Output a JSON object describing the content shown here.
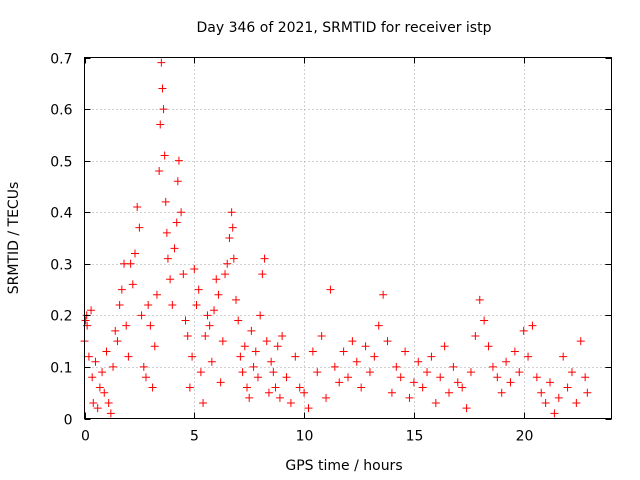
{
  "chart_data": {
    "type": "scatter",
    "title": "Day 346 of 2021, SRMTID for receiver istp",
    "xlabel": "GPS time / hours",
    "ylabel": "SRMTID / TECUs",
    "xlim": [
      0,
      24
    ],
    "ylim": [
      0,
      0.7
    ],
    "x_ticks": [
      0,
      5,
      10,
      15,
      20
    ],
    "y_ticks": [
      0,
      0.1,
      0.2,
      0.3,
      0.4,
      0.5,
      0.6,
      0.7
    ],
    "x_tick_labels": [
      "0",
      "5",
      "10",
      "15",
      "20"
    ],
    "y_tick_labels": [
      "0",
      "0.1",
      "0.2",
      "0.3",
      "0.4",
      "0.5",
      "0.6",
      "0.7"
    ],
    "grid": true,
    "marker": "+",
    "color": "#ff0000",
    "series": [
      {
        "name": "SRMTID",
        "points": [
          [
            0.0,
            0.15
          ],
          [
            0.05,
            0.19
          ],
          [
            0.1,
            0.2
          ],
          [
            0.12,
            0.18
          ],
          [
            0.2,
            0.12
          ],
          [
            0.3,
            0.21
          ],
          [
            0.35,
            0.08
          ],
          [
            0.4,
            0.03
          ],
          [
            0.5,
            0.11
          ],
          [
            0.6,
            0.02
          ],
          [
            0.7,
            0.06
          ],
          [
            0.8,
            0.09
          ],
          [
            0.9,
            0.05
          ],
          [
            1.0,
            0.13
          ],
          [
            1.1,
            0.03
          ],
          [
            1.2,
            0.01
          ],
          [
            1.3,
            0.1
          ],
          [
            1.4,
            0.17
          ],
          [
            1.5,
            0.15
          ],
          [
            1.6,
            0.22
          ],
          [
            1.7,
            0.25
          ],
          [
            1.8,
            0.3
          ],
          [
            1.9,
            0.18
          ],
          [
            2.0,
            0.12
          ],
          [
            2.1,
            0.3
          ],
          [
            2.2,
            0.26
          ],
          [
            2.3,
            0.32
          ],
          [
            2.4,
            0.41
          ],
          [
            2.5,
            0.37
          ],
          [
            2.6,
            0.2
          ],
          [
            2.7,
            0.1
          ],
          [
            2.8,
            0.08
          ],
          [
            2.9,
            0.22
          ],
          [
            3.0,
            0.18
          ],
          [
            3.1,
            0.06
          ],
          [
            3.2,
            0.14
          ],
          [
            3.3,
            0.24
          ],
          [
            3.4,
            0.48
          ],
          [
            3.45,
            0.57
          ],
          [
            3.5,
            0.69
          ],
          [
            3.55,
            0.64
          ],
          [
            3.6,
            0.6
          ],
          [
            3.65,
            0.51
          ],
          [
            3.7,
            0.42
          ],
          [
            3.75,
            0.36
          ],
          [
            3.8,
            0.31
          ],
          [
            3.9,
            0.27
          ],
          [
            4.0,
            0.22
          ],
          [
            4.1,
            0.33
          ],
          [
            4.2,
            0.38
          ],
          [
            4.25,
            0.46
          ],
          [
            4.3,
            0.5
          ],
          [
            4.4,
            0.4
          ],
          [
            4.5,
            0.28
          ],
          [
            4.6,
            0.19
          ],
          [
            4.7,
            0.16
          ],
          [
            4.8,
            0.06
          ],
          [
            4.9,
            0.12
          ],
          [
            5.0,
            0.29
          ],
          [
            5.1,
            0.22
          ],
          [
            5.2,
            0.25
          ],
          [
            5.3,
            0.09
          ],
          [
            5.4,
            0.03
          ],
          [
            5.5,
            0.16
          ],
          [
            5.6,
            0.2
          ],
          [
            5.7,
            0.18
          ],
          [
            5.8,
            0.11
          ],
          [
            5.9,
            0.21
          ],
          [
            6.0,
            0.27
          ],
          [
            6.1,
            0.24
          ],
          [
            6.2,
            0.07
          ],
          [
            6.3,
            0.15
          ],
          [
            6.4,
            0.28
          ],
          [
            6.5,
            0.3
          ],
          [
            6.6,
            0.35
          ],
          [
            6.7,
            0.4
          ],
          [
            6.75,
            0.37
          ],
          [
            6.8,
            0.31
          ],
          [
            6.9,
            0.23
          ],
          [
            7.0,
            0.19
          ],
          [
            7.1,
            0.12
          ],
          [
            7.2,
            0.09
          ],
          [
            7.3,
            0.14
          ],
          [
            7.4,
            0.06
          ],
          [
            7.5,
            0.04
          ],
          [
            7.6,
            0.17
          ],
          [
            7.7,
            0.1
          ],
          [
            7.8,
            0.13
          ],
          [
            7.9,
            0.08
          ],
          [
            8.0,
            0.2
          ],
          [
            8.1,
            0.28
          ],
          [
            8.2,
            0.31
          ],
          [
            8.3,
            0.15
          ],
          [
            8.4,
            0.05
          ],
          [
            8.5,
            0.11
          ],
          [
            8.6,
            0.09
          ],
          [
            8.7,
            0.06
          ],
          [
            8.8,
            0.14
          ],
          [
            8.9,
            0.04
          ],
          [
            9.0,
            0.16
          ],
          [
            9.2,
            0.08
          ],
          [
            9.4,
            0.03
          ],
          [
            9.6,
            0.12
          ],
          [
            9.8,
            0.06
          ],
          [
            10.0,
            0.05
          ],
          [
            10.2,
            0.02
          ],
          [
            10.4,
            0.13
          ],
          [
            10.6,
            0.09
          ],
          [
            10.8,
            0.16
          ],
          [
            11.0,
            0.04
          ],
          [
            11.2,
            0.25
          ],
          [
            11.4,
            0.1
          ],
          [
            11.6,
            0.07
          ],
          [
            11.8,
            0.13
          ],
          [
            12.0,
            0.08
          ],
          [
            12.2,
            0.15
          ],
          [
            12.4,
            0.11
          ],
          [
            12.6,
            0.06
          ],
          [
            12.8,
            0.14
          ],
          [
            13.0,
            0.09
          ],
          [
            13.2,
            0.12
          ],
          [
            13.4,
            0.18
          ],
          [
            13.6,
            0.24
          ],
          [
            13.8,
            0.15
          ],
          [
            14.0,
            0.05
          ],
          [
            14.2,
            0.1
          ],
          [
            14.4,
            0.08
          ],
          [
            14.6,
            0.13
          ],
          [
            14.8,
            0.04
          ],
          [
            15.0,
            0.07
          ],
          [
            15.2,
            0.11
          ],
          [
            15.4,
            0.06
          ],
          [
            15.6,
            0.09
          ],
          [
            15.8,
            0.12
          ],
          [
            16.0,
            0.03
          ],
          [
            16.2,
            0.08
          ],
          [
            16.4,
            0.14
          ],
          [
            16.6,
            0.05
          ],
          [
            16.8,
            0.1
          ],
          [
            17.0,
            0.07
          ],
          [
            17.2,
            0.06
          ],
          [
            17.4,
            0.02
          ],
          [
            17.6,
            0.09
          ],
          [
            17.8,
            0.16
          ],
          [
            18.0,
            0.23
          ],
          [
            18.2,
            0.19
          ],
          [
            18.4,
            0.14
          ],
          [
            18.6,
            0.1
          ],
          [
            18.8,
            0.08
          ],
          [
            19.0,
            0.05
          ],
          [
            19.2,
            0.11
          ],
          [
            19.4,
            0.07
          ],
          [
            19.6,
            0.13
          ],
          [
            19.8,
            0.09
          ],
          [
            20.0,
            0.17
          ],
          [
            20.2,
            0.12
          ],
          [
            20.4,
            0.18
          ],
          [
            20.6,
            0.08
          ],
          [
            20.8,
            0.05
          ],
          [
            21.0,
            0.03
          ],
          [
            21.2,
            0.07
          ],
          [
            21.4,
            0.01
          ],
          [
            21.6,
            0.04
          ],
          [
            21.8,
            0.12
          ],
          [
            22.0,
            0.06
          ],
          [
            22.2,
            0.09
          ],
          [
            22.4,
            0.03
          ],
          [
            22.6,
            0.15
          ],
          [
            22.8,
            0.08
          ],
          [
            22.9,
            0.05
          ]
        ]
      }
    ]
  }
}
